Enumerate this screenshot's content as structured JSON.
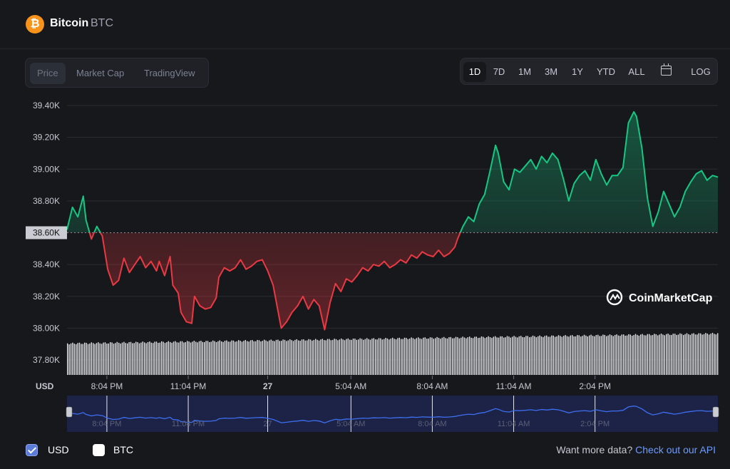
{
  "header": {
    "coin_name": "Bitcoin",
    "coin_symbol": "BTC",
    "icon": "bitcoin-icon"
  },
  "view_tabs": [
    {
      "label": "Price",
      "active": true
    },
    {
      "label": "Market Cap",
      "active": false
    },
    {
      "label": "TradingView",
      "active": false
    }
  ],
  "ranges": [
    {
      "label": "1D",
      "active": true
    },
    {
      "label": "7D",
      "active": false
    },
    {
      "label": "1M",
      "active": false
    },
    {
      "label": "3M",
      "active": false
    },
    {
      "label": "1Y",
      "active": false
    },
    {
      "label": "YTD",
      "active": false
    },
    {
      "label": "ALL",
      "active": false
    }
  ],
  "log_label": "LOG",
  "calendar_icon": "calendar-icon",
  "watermark": "CoinMarketCap",
  "colors": {
    "up": "#16c784",
    "down": "#ea3943",
    "navigator": "#3d6ff0",
    "background": "#17181b"
  },
  "footer": {
    "usd_label": "USD",
    "btc_label": "BTC",
    "api_text": "Want more data?",
    "api_link": "Check out our API"
  },
  "chart_data": {
    "type": "line",
    "currency_label": "USD",
    "baseline": 38600,
    "baseline_label": "38.60K",
    "ylim": [
      37800,
      39400
    ],
    "y_ticks": [
      37800,
      38000,
      38200,
      38400,
      38600,
      38800,
      39000,
      39200,
      39400
    ],
    "y_tick_labels": [
      "37.80K",
      "38.00K",
      "38.20K",
      "38.40K",
      "38.60K",
      "38.80K",
      "39.00K",
      "39.20K",
      "39.40K"
    ],
    "xlim": [
      18.6,
      42.6
    ],
    "x_ticks": [
      20.07,
      23.07,
      26,
      29.07,
      32.07,
      35.07,
      38.07
    ],
    "x_tick_labels": [
      "8:04 PM",
      "11:04 PM",
      "27",
      "5:04 AM",
      "8:04 AM",
      "11:04 AM",
      "2:04 PM"
    ],
    "x_unit": "hours from 00:00 on the 26th",
    "price": [
      [
        18.6,
        38620
      ],
      [
        18.8,
        38760
      ],
      [
        19.0,
        38700
      ],
      [
        19.2,
        38830
      ],
      [
        19.3,
        38680
      ],
      [
        19.5,
        38560
      ],
      [
        19.7,
        38640
      ],
      [
        19.9,
        38580
      ],
      [
        20.1,
        38370
      ],
      [
        20.3,
        38270
      ],
      [
        20.5,
        38300
      ],
      [
        20.7,
        38440
      ],
      [
        20.9,
        38350
      ],
      [
        21.1,
        38400
      ],
      [
        21.3,
        38450
      ],
      [
        21.5,
        38380
      ],
      [
        21.7,
        38420
      ],
      [
        21.9,
        38360
      ],
      [
        22.0,
        38420
      ],
      [
        22.2,
        38330
      ],
      [
        22.4,
        38450
      ],
      [
        22.5,
        38270
      ],
      [
        22.7,
        38220
      ],
      [
        22.8,
        38100
      ],
      [
        23.0,
        38040
      ],
      [
        23.2,
        38030
      ],
      [
        23.3,
        38200
      ],
      [
        23.5,
        38140
      ],
      [
        23.7,
        38120
      ],
      [
        23.9,
        38130
      ],
      [
        24.1,
        38190
      ],
      [
        24.2,
        38320
      ],
      [
        24.4,
        38380
      ],
      [
        24.6,
        38360
      ],
      [
        24.8,
        38380
      ],
      [
        25.0,
        38430
      ],
      [
        25.2,
        38370
      ],
      [
        25.4,
        38390
      ],
      [
        25.6,
        38420
      ],
      [
        25.8,
        38430
      ],
      [
        26.0,
        38360
      ],
      [
        26.2,
        38270
      ],
      [
        26.3,
        38180
      ],
      [
        26.5,
        38000
      ],
      [
        26.7,
        38040
      ],
      [
        26.9,
        38100
      ],
      [
        27.1,
        38140
      ],
      [
        27.3,
        38200
      ],
      [
        27.5,
        38120
      ],
      [
        27.7,
        38180
      ],
      [
        27.9,
        38140
      ],
      [
        28.1,
        37990
      ],
      [
        28.3,
        38160
      ],
      [
        28.5,
        38280
      ],
      [
        28.7,
        38230
      ],
      [
        28.9,
        38310
      ],
      [
        29.1,
        38290
      ],
      [
        29.3,
        38330
      ],
      [
        29.5,
        38380
      ],
      [
        29.7,
        38360
      ],
      [
        29.9,
        38400
      ],
      [
        30.1,
        38390
      ],
      [
        30.3,
        38420
      ],
      [
        30.5,
        38380
      ],
      [
        30.7,
        38400
      ],
      [
        30.9,
        38430
      ],
      [
        31.1,
        38410
      ],
      [
        31.3,
        38460
      ],
      [
        31.5,
        38440
      ],
      [
        31.7,
        38480
      ],
      [
        31.9,
        38460
      ],
      [
        32.1,
        38450
      ],
      [
        32.3,
        38490
      ],
      [
        32.5,
        38450
      ],
      [
        32.7,
        38470
      ],
      [
        32.9,
        38510
      ],
      [
        33.0,
        38560
      ],
      [
        33.2,
        38640
      ],
      [
        33.4,
        38700
      ],
      [
        33.6,
        38670
      ],
      [
        33.8,
        38780
      ],
      [
        34.0,
        38840
      ],
      [
        34.2,
        38990
      ],
      [
        34.4,
        39150
      ],
      [
        34.5,
        39100
      ],
      [
        34.7,
        38920
      ],
      [
        34.9,
        38870
      ],
      [
        35.1,
        39000
      ],
      [
        35.3,
        38980
      ],
      [
        35.5,
        39020
      ],
      [
        35.7,
        39060
      ],
      [
        35.9,
        39000
      ],
      [
        36.1,
        39080
      ],
      [
        36.3,
        39040
      ],
      [
        36.5,
        39100
      ],
      [
        36.7,
        39060
      ],
      [
        36.9,
        38940
      ],
      [
        37.1,
        38800
      ],
      [
        37.3,
        38910
      ],
      [
        37.5,
        38960
      ],
      [
        37.7,
        38990
      ],
      [
        37.9,
        38930
      ],
      [
        38.1,
        39060
      ],
      [
        38.3,
        38970
      ],
      [
        38.5,
        38900
      ],
      [
        38.7,
        38960
      ],
      [
        38.9,
        38960
      ],
      [
        39.1,
        39010
      ],
      [
        39.3,
        39290
      ],
      [
        39.5,
        39360
      ],
      [
        39.6,
        39330
      ],
      [
        39.8,
        39130
      ],
      [
        40.0,
        38820
      ],
      [
        40.2,
        38640
      ],
      [
        40.4,
        38730
      ],
      [
        40.6,
        38860
      ],
      [
        40.8,
        38780
      ],
      [
        41.0,
        38700
      ],
      [
        41.2,
        38760
      ],
      [
        41.4,
        38860
      ],
      [
        41.6,
        38920
      ],
      [
        41.8,
        38970
      ],
      [
        42.0,
        38990
      ],
      [
        42.2,
        38930
      ],
      [
        42.4,
        38960
      ],
      [
        42.6,
        38950
      ]
    ],
    "navigator": {
      "x_tick_labels": [
        "8:04 PM",
        "11:04 PM",
        "27",
        "5:04 AM",
        "8:04 AM",
        "11:04 AM",
        "2:04 PM"
      ]
    }
  }
}
